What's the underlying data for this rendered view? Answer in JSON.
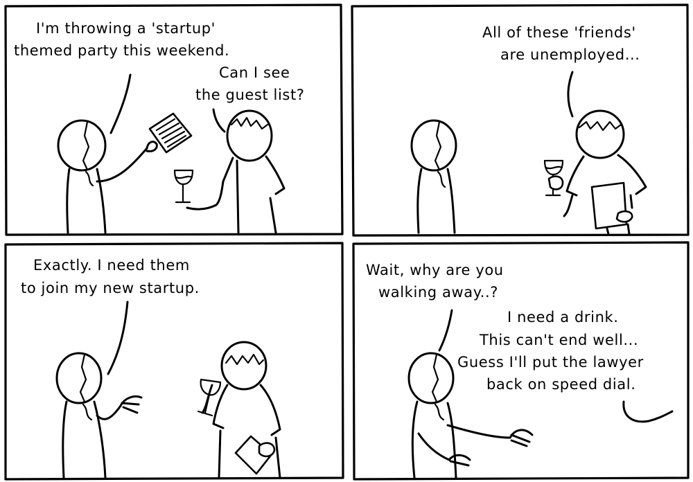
{
  "panels": [
    {
      "lines": [
        "I'm throwing a 'startup'",
        "themed party this weekend.",
        "Can I see",
        "the guest list?"
      ]
    },
    {
      "lines": [
        "All of these 'friends'",
        "are unemployed..."
      ]
    },
    {
      "lines": [
        "Exactly. I need them",
        "to join my new startup."
      ]
    },
    {
      "lines": [
        "Wait, why are you",
        "walking away..?",
        "I need a drink.",
        "This can't end well...",
        "Guess I'll put the lawyer",
        "back on speed dial."
      ]
    }
  ]
}
